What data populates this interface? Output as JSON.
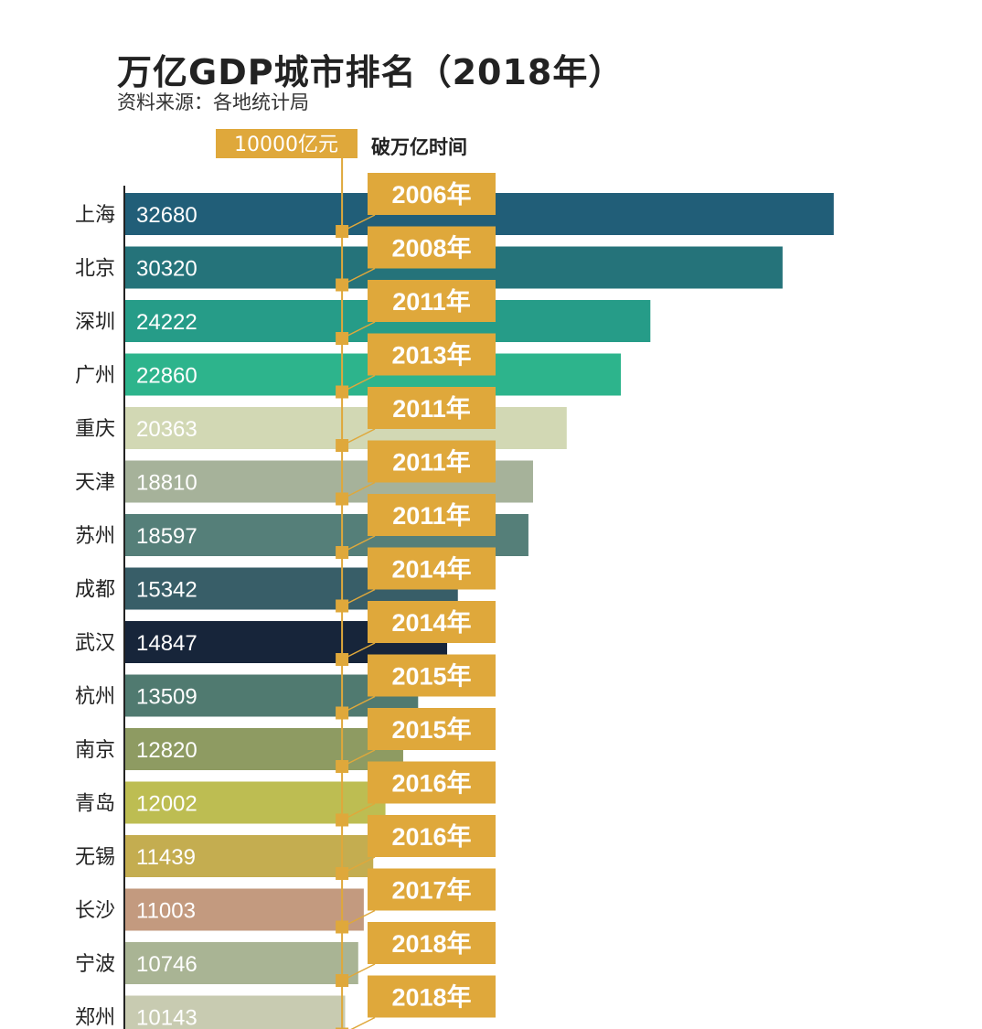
{
  "chart_data": {
    "type": "bar",
    "orientation": "horizontal",
    "title": "万亿GDP城市排名（2018年）",
    "subtitle": "资料来源：各地统计局",
    "reference_label": "10000亿元",
    "reference_value": 10000,
    "year_column_header": "破万亿时间",
    "categories": [
      "上海",
      "北京",
      "深圳",
      "广州",
      "重庆",
      "天津",
      "苏州",
      "成都",
      "武汉",
      "杭州",
      "南京",
      "青岛",
      "无锡",
      "长沙",
      "宁波",
      "郑州"
    ],
    "values": [
      32680,
      30320,
      24222,
      22860,
      20363,
      18810,
      18597,
      15342,
      14847,
      13509,
      12820,
      12002,
      11439,
      11003,
      10746,
      10143
    ],
    "years": [
      "2006年",
      "2008年",
      "2011年",
      "2013年",
      "2011年",
      "2011年",
      "2011年",
      "2014年",
      "2014年",
      "2015年",
      "2015年",
      "2016年",
      "2016年",
      "2017年",
      "2018年",
      "2018年"
    ],
    "bar_colors": [
      "#215e78",
      "#25737a",
      "#269c88",
      "#2db48c",
      "#d2d8b4",
      "#a6b29a",
      "#557f79",
      "#385e68",
      "#17253a",
      "#507a70",
      "#8e9b62",
      "#bdbd52",
      "#c4ad50",
      "#c39a7f",
      "#a9b494",
      "#c8cbb1"
    ],
    "value_label_colors": [
      "#ffffff",
      "#ffffff",
      "#ffffff",
      "#ffffff",
      "#ffffff",
      "#ffffff",
      "#ffffff",
      "#ffffff",
      "#ffffff",
      "#ffffff",
      "#ffffff",
      "#ffffff",
      "#ffffff",
      "#ffffff",
      "#ffffff",
      "#ffffff"
    ],
    "accent_color": "#dfa83b",
    "grid": false
  }
}
